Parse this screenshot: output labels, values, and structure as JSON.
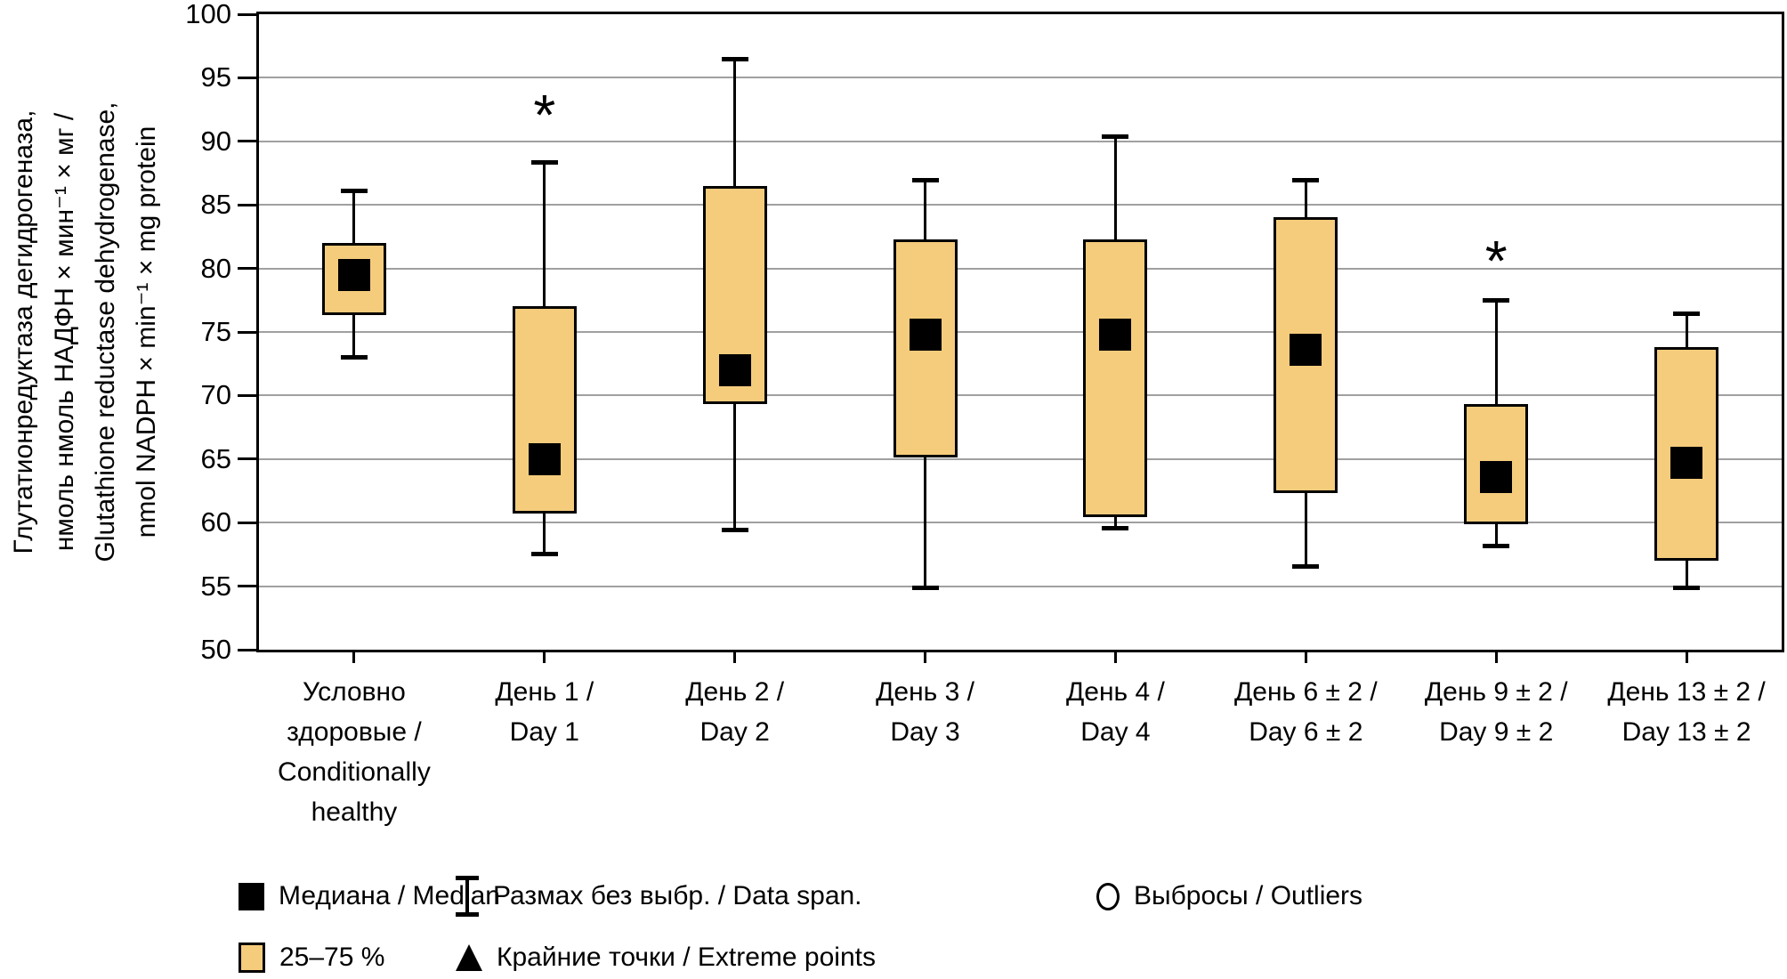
{
  "chart_data": {
    "type": "boxplot",
    "title": "",
    "ylabel_lines": [
      "Глутатионредуктаза дегидрогеназа,",
      "нмоль нмоль НАДФН × мин⁻¹ × мг /",
      "Glutathione reductase dehydrogenase,",
      "nmol NADPH × min⁻¹ × mg protein"
    ],
    "xlabel": "",
    "ylim": [
      50,
      100
    ],
    "yticks": [
      50,
      55,
      60,
      65,
      70,
      75,
      80,
      85,
      90,
      95,
      100
    ],
    "grid": "horizontal-only",
    "legend_position": "bottom",
    "categories": [
      "Условно здоровые / Conditionally healthy",
      "День 1 / Day 1",
      "День 2 / Day 2",
      "День 3 / Day 3",
      "День 4 / Day 4",
      "День 6 ± 2 / Day 6 ± 2",
      "День 9 ± 2 / Day 9 ± 2",
      "День 13 ± 2 / Day 13 ± 2"
    ],
    "series": [
      {
        "label_lines": [
          "Условно",
          "здоровые /",
          "Conditionally",
          "healthy"
        ],
        "whisker_low": 73.0,
        "q1": 76.3,
        "median": 79.5,
        "q3": 82.0,
        "whisker_high": 86.1,
        "star": null
      },
      {
        "label_lines": [
          "День 1 /",
          "Day 1"
        ],
        "whisker_low": 57.5,
        "q1": 60.7,
        "median": 65.0,
        "q3": 77.0,
        "whisker_high": 88.4,
        "star": 92.5
      },
      {
        "label_lines": [
          "День 2 /",
          "Day 2"
        ],
        "whisker_low": 59.4,
        "q1": 69.3,
        "median": 72.0,
        "q3": 86.5,
        "whisker_high": 96.5,
        "star": null
      },
      {
        "label_lines": [
          "День 3 /",
          "Day 3"
        ],
        "whisker_low": 54.8,
        "q1": 65.1,
        "median": 74.8,
        "q3": 82.3,
        "whisker_high": 87.0,
        "star": null
      },
      {
        "label_lines": [
          "День 4 /",
          "Day 4"
        ],
        "whisker_low": 59.5,
        "q1": 60.4,
        "median": 74.8,
        "q3": 82.3,
        "whisker_high": 90.4,
        "star": null
      },
      {
        "label_lines": [
          "День 6 ± 2 /",
          "Day 6 ± 2"
        ],
        "whisker_low": 56.5,
        "q1": 62.3,
        "median": 73.6,
        "q3": 84.0,
        "whisker_high": 87.0,
        "star": null
      },
      {
        "label_lines": [
          "День 9 ± 2 /",
          "Day 9 ± 2"
        ],
        "whisker_low": 58.1,
        "q1": 59.9,
        "median": 63.6,
        "q3": 69.3,
        "whisker_high": 77.5,
        "star": 81.0
      },
      {
        "label_lines": [
          "День 13 ± 2 /",
          "Day 13 ± 2"
        ],
        "whisker_low": 54.8,
        "q1": 57.0,
        "median": 64.7,
        "q3": 73.8,
        "whisker_high": 76.5,
        "star": null
      }
    ],
    "annotations": [
      {
        "symbol": "*",
        "category_index": 1,
        "y": 92.5
      },
      {
        "symbol": "*",
        "category_index": 6,
        "y": 81.0
      }
    ],
    "colors": {
      "box_fill": "#f5cc7c",
      "box_border": "#000000",
      "median_marker": "#000000",
      "gridline": "#a0a0a0",
      "axis": "#000000",
      "background": "#ffffff"
    }
  },
  "legend": {
    "items": [
      {
        "icon": "median-square-icon",
        "label": "Медиана / Median"
      },
      {
        "icon": "box-range-icon",
        "label": "25–75 %"
      },
      {
        "icon": "whisker-span-icon",
        "label": "Размах без выбр. / Data span."
      },
      {
        "icon": "extreme-points-icon",
        "label": "Крайние точки / Extreme points"
      },
      {
        "icon": "outliers-circle-icon",
        "label": "Выбросы / Outliers"
      }
    ]
  }
}
